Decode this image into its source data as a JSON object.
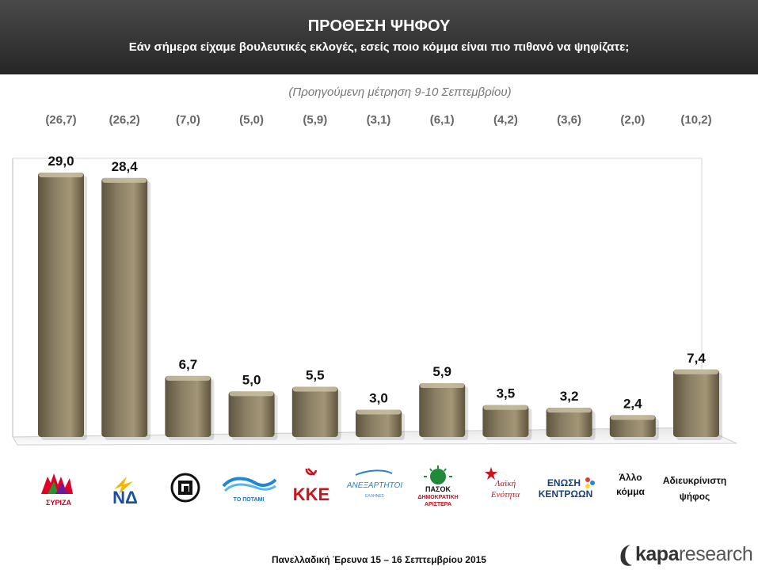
{
  "header": {
    "title": "ΠΡΟΘΕΣΗ ΨΗΦΟΥ",
    "subtitle": "Εάν σήμερα είχαμε βουλευτικές εκλογές, εσείς ποιο κόμμα είναι πιο πιθανό να ψηφίζατε;"
  },
  "previous_note": "(Προηγούμενη μέτρηση 9-10 Σεπτεμβρίου)",
  "colors": {
    "header_bg": "#333333",
    "bar": "#8a7e64",
    "bar_top": "#c9bfa2",
    "bar_dark": "#5e553f"
  },
  "chart_data": {
    "type": "bar",
    "categories": [
      "ΣΥΡΙΖΑ",
      "ΝΔ",
      "Χρυσή Αυγή",
      "ΤΟ ΠΟΤΑΜΙ",
      "ΚΚΕ",
      "ΑΝΕΞΑΡΤΗΤΟΙ ΕΛΛΗΝΕΣ",
      "ΠΑΣΟΚ ΔΗΜΟΚΡΑΤΙΚΗ ΑΡΙΣΤΕΡΑ",
      "Λαϊκή Ενότητα",
      "ΕΝΩΣΗ ΚΕΝΤΡΩΩΝ",
      "Άλλο κόμμα",
      "Αδιευκρίνιστη ψήφος"
    ],
    "values": [
      29.0,
      28.4,
      6.7,
      5.0,
      5.5,
      3.0,
      5.9,
      3.5,
      3.2,
      2.4,
      7.4
    ],
    "value_labels": [
      "29,0",
      "28,4",
      "6,7",
      "5,0",
      "5,5",
      "3,0",
      "5,9",
      "3,5",
      "3,2",
      "2,4",
      "7,4"
    ],
    "previous_labels": [
      "(26,7)",
      "(26,2)",
      "(7,0)",
      "(5,0)",
      "(5,9)",
      "(3,1)",
      "(6,1)",
      "(4,2)",
      "(3,6)",
      "(2,0)",
      "(10,2)"
    ],
    "ylim": [
      0,
      30
    ],
    "grid": false,
    "legend": "none"
  },
  "logos": [
    {
      "name": "syriza-logo",
      "text": "ΣΥΡΙΖΑ"
    },
    {
      "name": "nd-logo",
      "text": "ΝΔ"
    },
    {
      "name": "golden-dawn-logo",
      "text": ""
    },
    {
      "name": "potami-logo",
      "text": "ΤΟ ΠΟΤΑΜΙ"
    },
    {
      "name": "kke-logo",
      "text": "ΚΚΕ"
    },
    {
      "name": "anel-logo",
      "text": "ΑΝΕΞΑΡΤΗΤΟΙ",
      "subtext": "ΕΛΛΗΝΕΣ"
    },
    {
      "name": "pasok-logo",
      "text": "ΠΑΣΟΚ",
      "subtext": "ΔΗΜΟΚΡΑΤΙΚΗ",
      "subtext2": "ΑΡΙΣΤΕΡΑ"
    },
    {
      "name": "laiki-enotita-logo",
      "text": "Λαϊκή",
      "subtext": "Ενότητα"
    },
    {
      "name": "enosi-kentroon-logo",
      "text": "ΕΝΩΣΗ",
      "subtext": "ΚΕΝΤΡΩΩΝ"
    },
    {
      "name": "allo-komma-label",
      "text": "Άλλο",
      "subtext": "κόμμα"
    },
    {
      "name": "undecided-label",
      "text": "Αδιευκρίνιστη",
      "subtext": "ψήφος"
    }
  ],
  "footer": "Πανελλαδική Έρευνα  15 – 16 Σεπτεμβρίου 2015",
  "brand": {
    "prefix": "kapa",
    "suffix": "research"
  }
}
